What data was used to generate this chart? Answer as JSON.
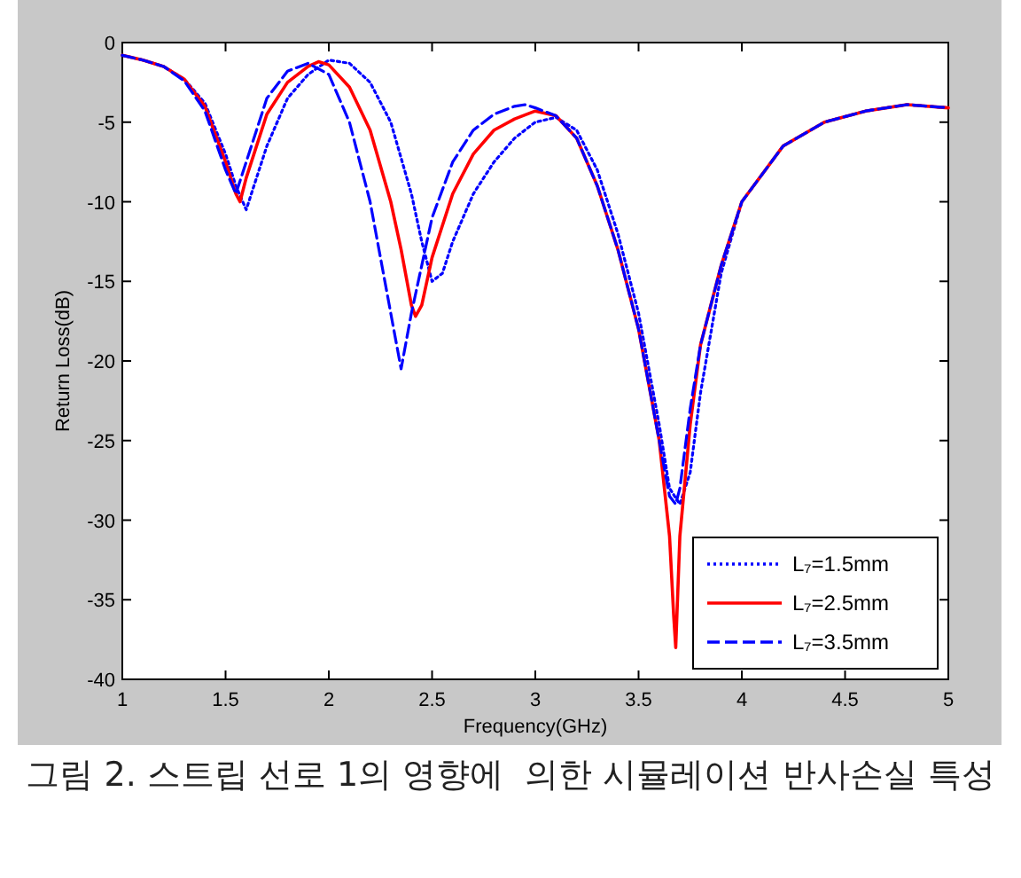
{
  "chart_data": {
    "type": "line",
    "xlabel": "Frequency(GHz)",
    "ylabel": "Return Loss(dB)",
    "xlim": [
      1,
      5
    ],
    "ylim": [
      -40,
      0
    ],
    "xticks": [
      1,
      1.5,
      2,
      2.5,
      3,
      3.5,
      4,
      4.5,
      5
    ],
    "yticks": [
      -40,
      -35,
      -30,
      -25,
      -20,
      -15,
      -10,
      -5,
      0
    ],
    "legend": "bottom right",
    "grid": false,
    "annotations": [
      "그림 2. 스트립 선로 1의 영향에  의한 시뮬레이션 반사손실 특성"
    ],
    "series": [
      {
        "name": "L₇=1.5mm",
        "color": "#0000ff",
        "line_style": "dotted",
        "x": [
          1,
          1.1,
          1.2,
          1.3,
          1.4,
          1.5,
          1.55,
          1.6,
          1.65,
          1.7,
          1.8,
          1.9,
          2.0,
          2.1,
          2.2,
          2.3,
          2.4,
          2.45,
          2.5,
          2.55,
          2.6,
          2.7,
          2.8,
          2.9,
          3.0,
          3.1,
          3.2,
          3.3,
          3.4,
          3.5,
          3.6,
          3.65,
          3.7,
          3.75,
          3.8,
          3.9,
          4.0,
          4.2,
          4.4,
          4.6,
          4.8,
          5.0
        ],
        "values": [
          -0.8,
          -1.1,
          -1.5,
          -2.3,
          -3.8,
          -7,
          -9,
          -10.5,
          -8.5,
          -6.5,
          -3.5,
          -2,
          -1.1,
          -1.3,
          -2.5,
          -5,
          -9.5,
          -12.5,
          -15,
          -14.5,
          -12.5,
          -9.5,
          -7.5,
          -6,
          -5,
          -4.7,
          -5.5,
          -8,
          -12,
          -17,
          -24,
          -28,
          -29,
          -27,
          -22,
          -14.5,
          -10,
          -6.5,
          -5,
          -4.3,
          -3.9,
          -4.1
        ]
      },
      {
        "name": "L₇=2.5mm",
        "color": "#ff0000",
        "line_style": "solid",
        "x": [
          1,
          1.1,
          1.2,
          1.3,
          1.4,
          1.5,
          1.55,
          1.57,
          1.6,
          1.7,
          1.8,
          1.9,
          1.95,
          2.0,
          2.1,
          2.2,
          2.3,
          2.35,
          2.4,
          2.42,
          2.45,
          2.5,
          2.6,
          2.7,
          2.8,
          2.9,
          3.0,
          3.1,
          3.2,
          3.3,
          3.4,
          3.5,
          3.6,
          3.65,
          3.67,
          3.68,
          3.7,
          3.75,
          3.8,
          3.9,
          4.0,
          4.2,
          4.4,
          4.6,
          4.8,
          5.0
        ],
        "values": [
          -0.8,
          -1.1,
          -1.5,
          -2.3,
          -4,
          -7.5,
          -9.5,
          -10,
          -8.5,
          -4.5,
          -2.5,
          -1.5,
          -1.2,
          -1.4,
          -2.8,
          -5.5,
          -10,
          -13,
          -16.5,
          -17.2,
          -16.5,
          -13.5,
          -9.5,
          -7,
          -5.5,
          -4.8,
          -4.3,
          -4.6,
          -6,
          -9,
          -13,
          -18,
          -25,
          -31,
          -36,
          -38,
          -31,
          -24,
          -19,
          -14,
          -10,
          -6.5,
          -5,
          -4.3,
          -3.9,
          -4.1
        ]
      },
      {
        "name": "L₇=3.5mm",
        "color": "#0000ff",
        "line_style": "dashed",
        "x": [
          1,
          1.1,
          1.2,
          1.3,
          1.4,
          1.5,
          1.55,
          1.6,
          1.7,
          1.8,
          1.9,
          2.0,
          2.1,
          2.2,
          2.3,
          2.35,
          2.4,
          2.5,
          2.6,
          2.7,
          2.8,
          2.9,
          2.95,
          3.0,
          3.1,
          3.2,
          3.3,
          3.4,
          3.5,
          3.6,
          3.65,
          3.68,
          3.7,
          3.75,
          3.8,
          3.9,
          4.0,
          4.2,
          4.4,
          4.6,
          4.8,
          5.0
        ],
        "values": [
          -0.8,
          -1.1,
          -1.5,
          -2.4,
          -4.3,
          -8,
          -9.5,
          -7.5,
          -3.5,
          -1.8,
          -1.3,
          -2,
          -5,
          -10,
          -17,
          -20.5,
          -17,
          -11,
          -7.5,
          -5.5,
          -4.5,
          -4,
          -3.9,
          -4.1,
          -4.6,
          -6,
          -9,
          -13,
          -18,
          -25,
          -28.5,
          -29,
          -28,
          -23,
          -19,
          -14,
          -10,
          -6.5,
          -5,
          -4.3,
          -3.9,
          -4.1
        ]
      }
    ]
  }
}
